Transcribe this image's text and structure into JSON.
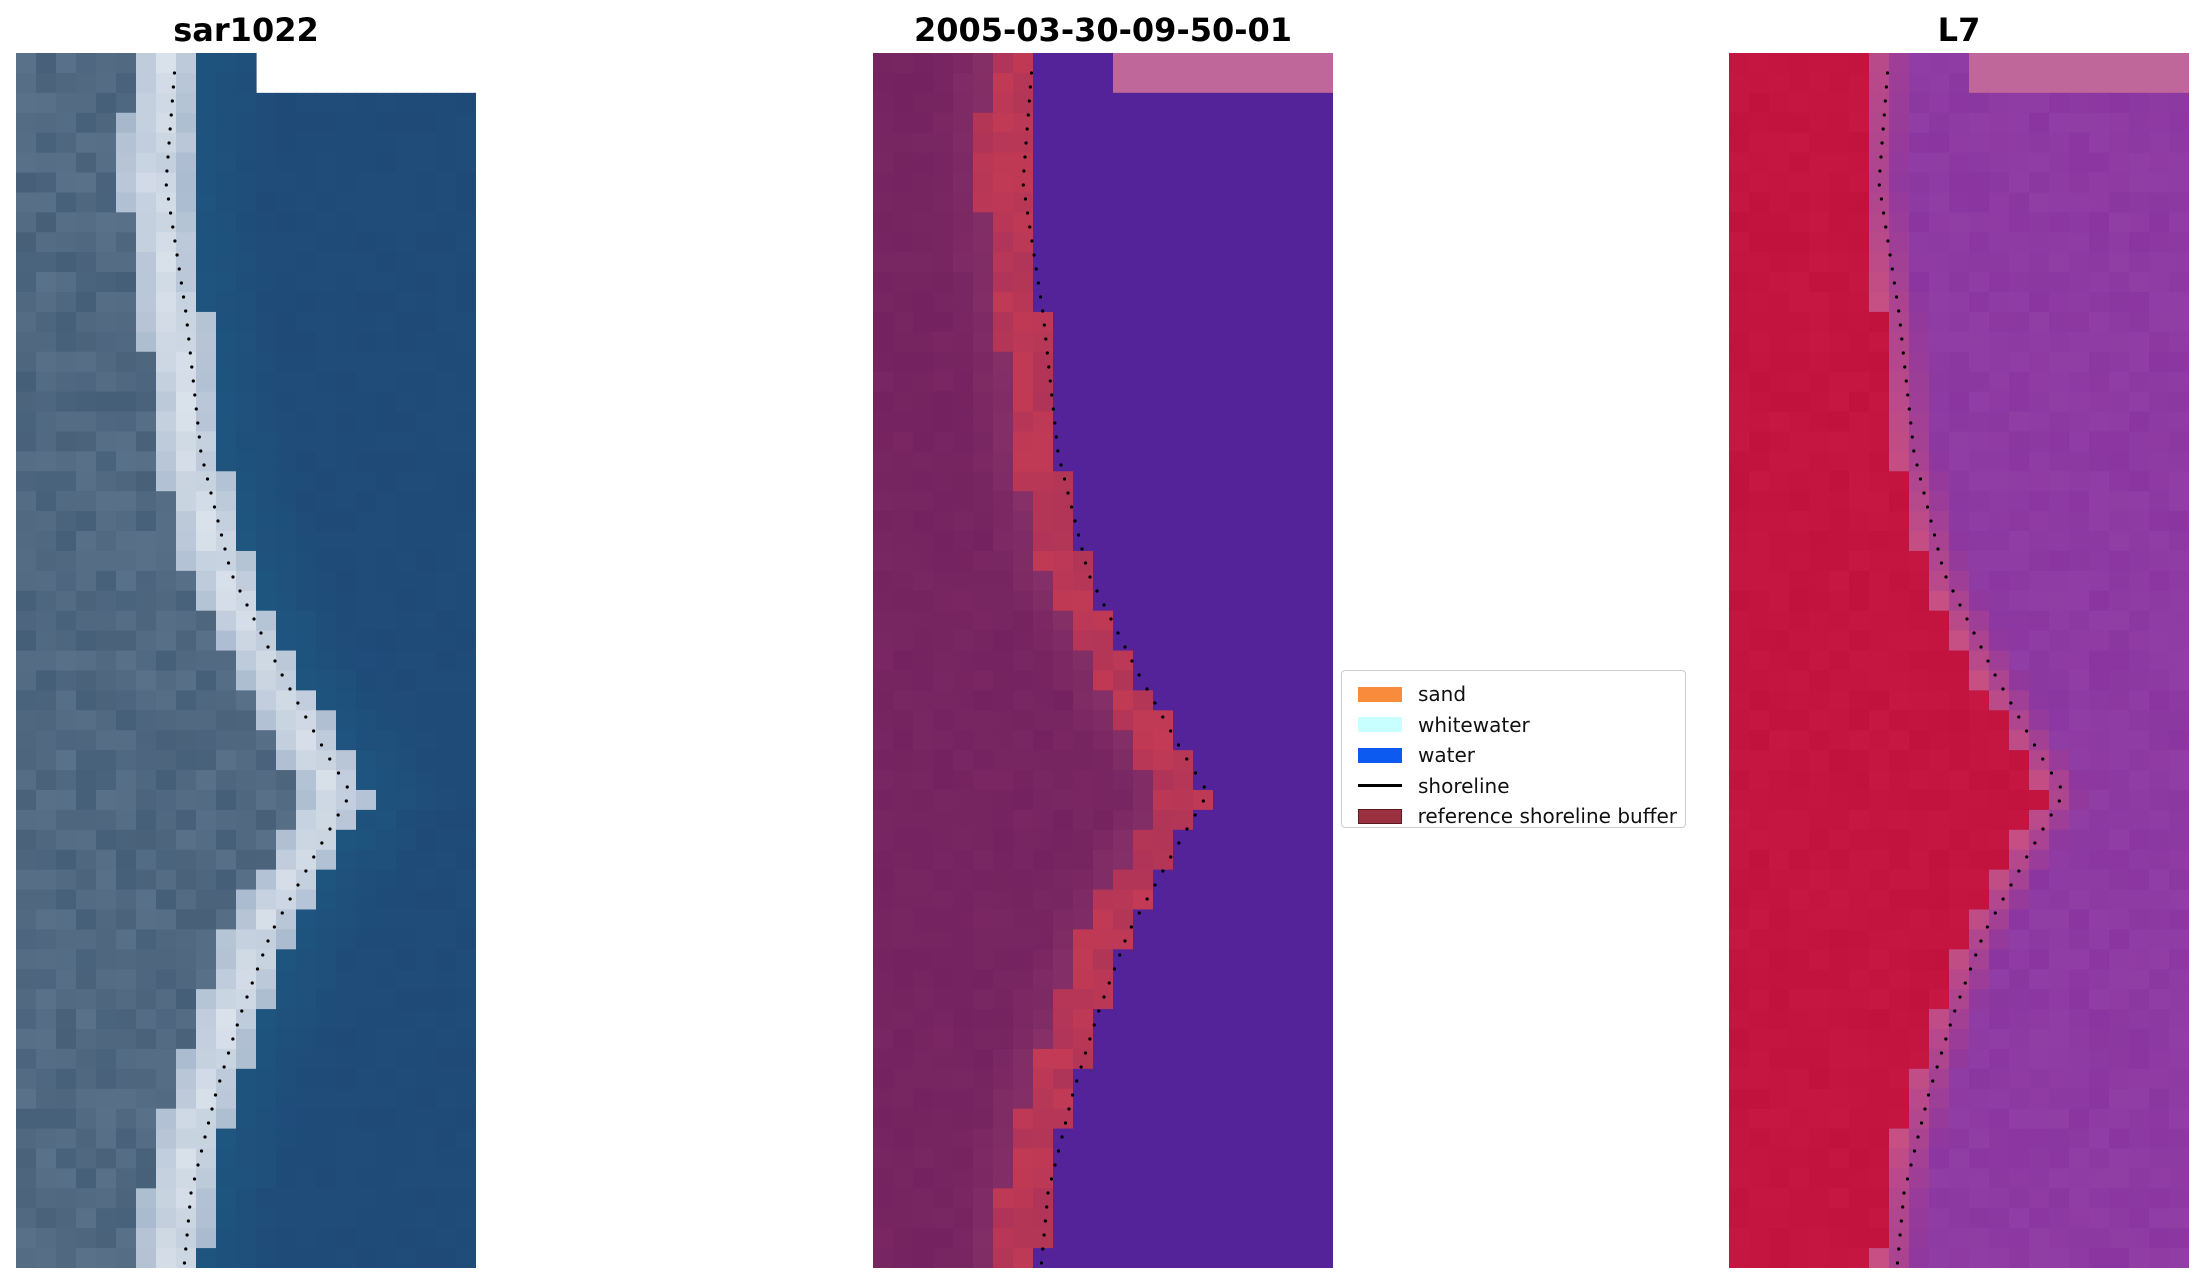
{
  "panels": [
    {
      "title": "sar1022"
    },
    {
      "title": "2005-03-30-09-50-01"
    },
    {
      "title": "L7"
    }
  ],
  "legend": {
    "items": [
      {
        "label": "sand",
        "color": "#f98b3d",
        "kind": "patch"
      },
      {
        "label": "whitewater",
        "color": "#c8ffff",
        "kind": "patch"
      },
      {
        "label": "water",
        "color": "#0d5af0",
        "kind": "patch"
      },
      {
        "label": "shoreline",
        "color": "#000000",
        "kind": "line"
      },
      {
        "label": "reference shoreline buffer",
        "color": "#9a3040",
        "kind": "patch"
      }
    ]
  },
  "colors": {
    "rgb_ocean": "#1f4a78",
    "rgb_sand": "#dfe6ee",
    "rgb_land": "#5a7289",
    "class_water": "#54239a",
    "class_land": "#742360",
    "class_buffer": "#c23a55",
    "class_nodata": "#bf669a",
    "index_land": "#c0123c",
    "index_water": "#8b36a0",
    "index_nodata": "#bf669a",
    "shoreline": "#000000"
  }
}
